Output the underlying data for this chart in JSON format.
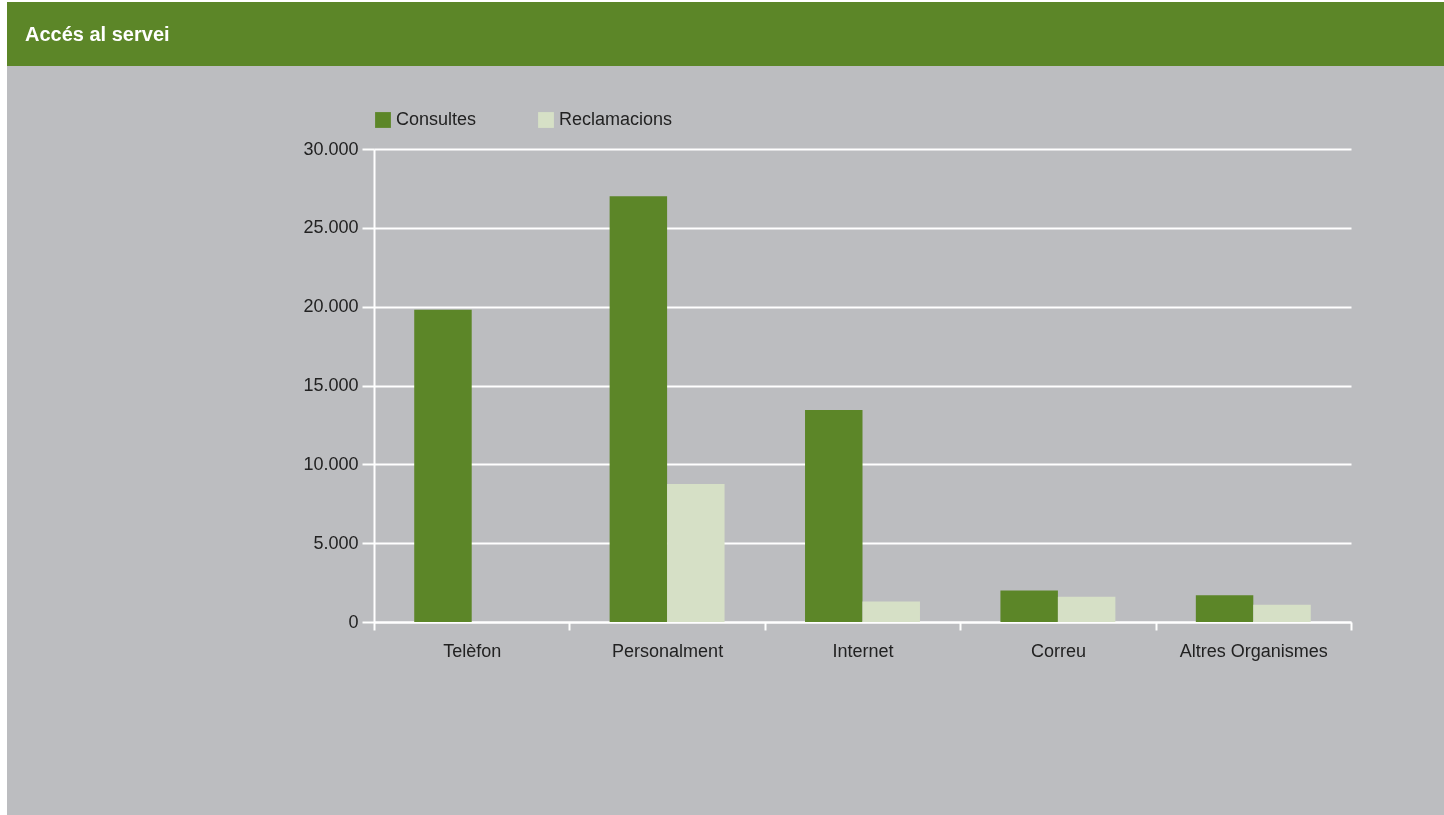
{
  "chart_data": {
    "type": "bar",
    "title": "Accés al servei",
    "categories": [
      "Telèfon",
      "Personalment",
      "Internet",
      "Correu",
      "Altres Organismes"
    ],
    "series": [
      {
        "name": "Consultes",
        "color": "#5c8628",
        "values": [
          19800,
          27000,
          13450,
          2000,
          1700
        ]
      },
      {
        "name": "Reclamacions",
        "color": "#d6e0c6",
        "values": [
          null,
          8750,
          1300,
          1600,
          1100
        ]
      }
    ],
    "ylim": [
      0,
      30000
    ],
    "yticks": [
      0,
      {
        "value": 5000,
        "label": "5.000"
      },
      {
        "value": 10000,
        "label": "10.000"
      },
      {
        "value": 15000,
        "label": "15.000"
      },
      {
        "value": 20000,
        "label": "20.000"
      },
      {
        "value": 25000,
        "label": "25.000"
      },
      {
        "value": 30000,
        "label": "30.000"
      }
    ],
    "grid": "y",
    "legend": "top left"
  }
}
